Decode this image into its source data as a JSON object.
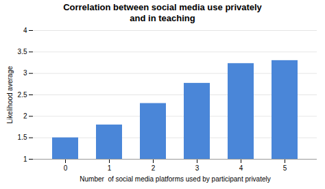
{
  "chart_data": {
    "type": "bar",
    "title": "Correlation between social media use privately\nand in teaching",
    "xlabel": "Number  of social media platforms used by participant privately",
    "ylabel": "Likelihood average",
    "categories": [
      0,
      1,
      2,
      3,
      4,
      5
    ],
    "values": [
      1.5,
      1.8,
      2.3,
      2.77,
      3.23,
      3.3
    ],
    "color": "#4a86d8",
    "ylim": [
      1.0,
      4.0
    ],
    "yticks": [
      1.0,
      1.5,
      2.0,
      2.5,
      3.0,
      3.5,
      4.0
    ],
    "grid": true
  }
}
